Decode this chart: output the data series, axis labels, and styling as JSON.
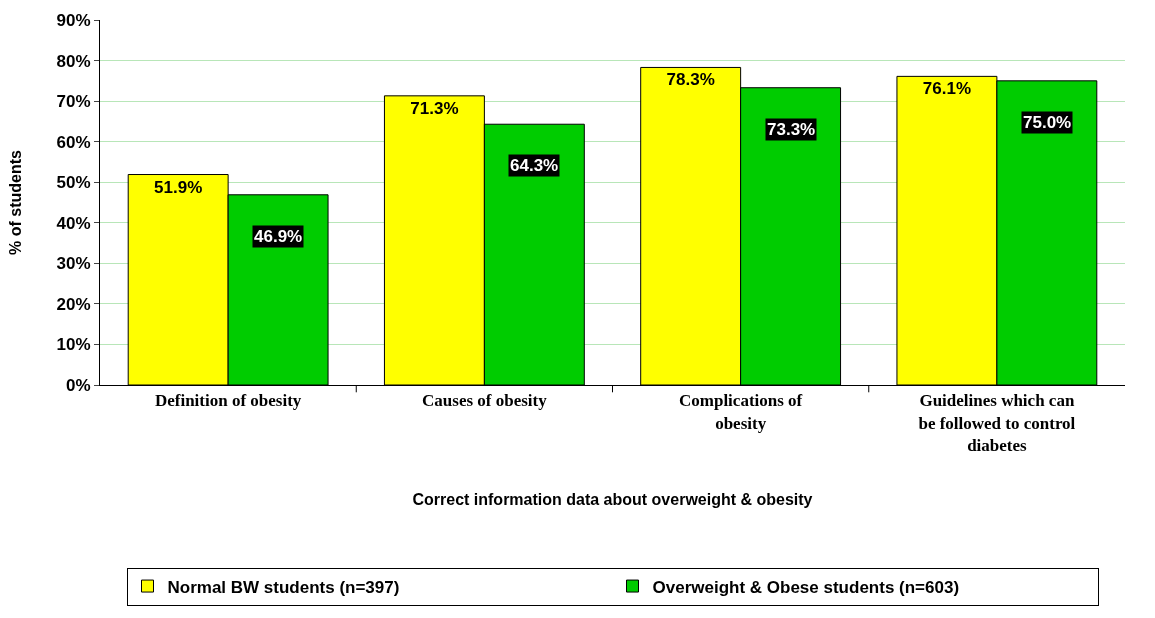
{
  "chart_data": {
    "type": "bar",
    "xlabel": "Correct information data about overweight & obesity",
    "ylabel": "% of students",
    "categories": [
      "Definition of obesity",
      "Causes of obesity",
      "Complications of obesity",
      "Guidelines which can be followed to control diabetes"
    ],
    "series": [
      {
        "name": "Normal BW students (n=397)",
        "color": "#ffff00",
        "values": [
          51.9,
          71.3,
          78.3,
          76.1
        ]
      },
      {
        "name": "Overweight & Obese students (n=603)",
        "color": "#00cc00",
        "values": [
          46.9,
          64.3,
          73.3,
          75.0
        ]
      }
    ],
    "value_labels": [
      [
        "51.9%",
        "71.3%",
        "78.3%",
        "76.1%"
      ],
      [
        "46.9%",
        "64.3%",
        "73.3%",
        "75.0%"
      ]
    ],
    "ylim": [
      0,
      90
    ],
    "yticks": [
      {
        "value": 0,
        "label": "0%"
      },
      {
        "value": 10,
        "label": "10%"
      },
      {
        "value": 20,
        "label": "20%"
      },
      {
        "value": 30,
        "label": "30%"
      },
      {
        "value": 40,
        "label": "40%"
      },
      {
        "value": 50,
        "label": "50%"
      },
      {
        "value": 60,
        "label": "60%"
      },
      {
        "value": 70,
        "label": "70%"
      },
      {
        "value": 80,
        "label": "80%"
      },
      {
        "value": 90,
        "label": "90%"
      }
    ],
    "grid": "y",
    "legend": "bottom"
  }
}
